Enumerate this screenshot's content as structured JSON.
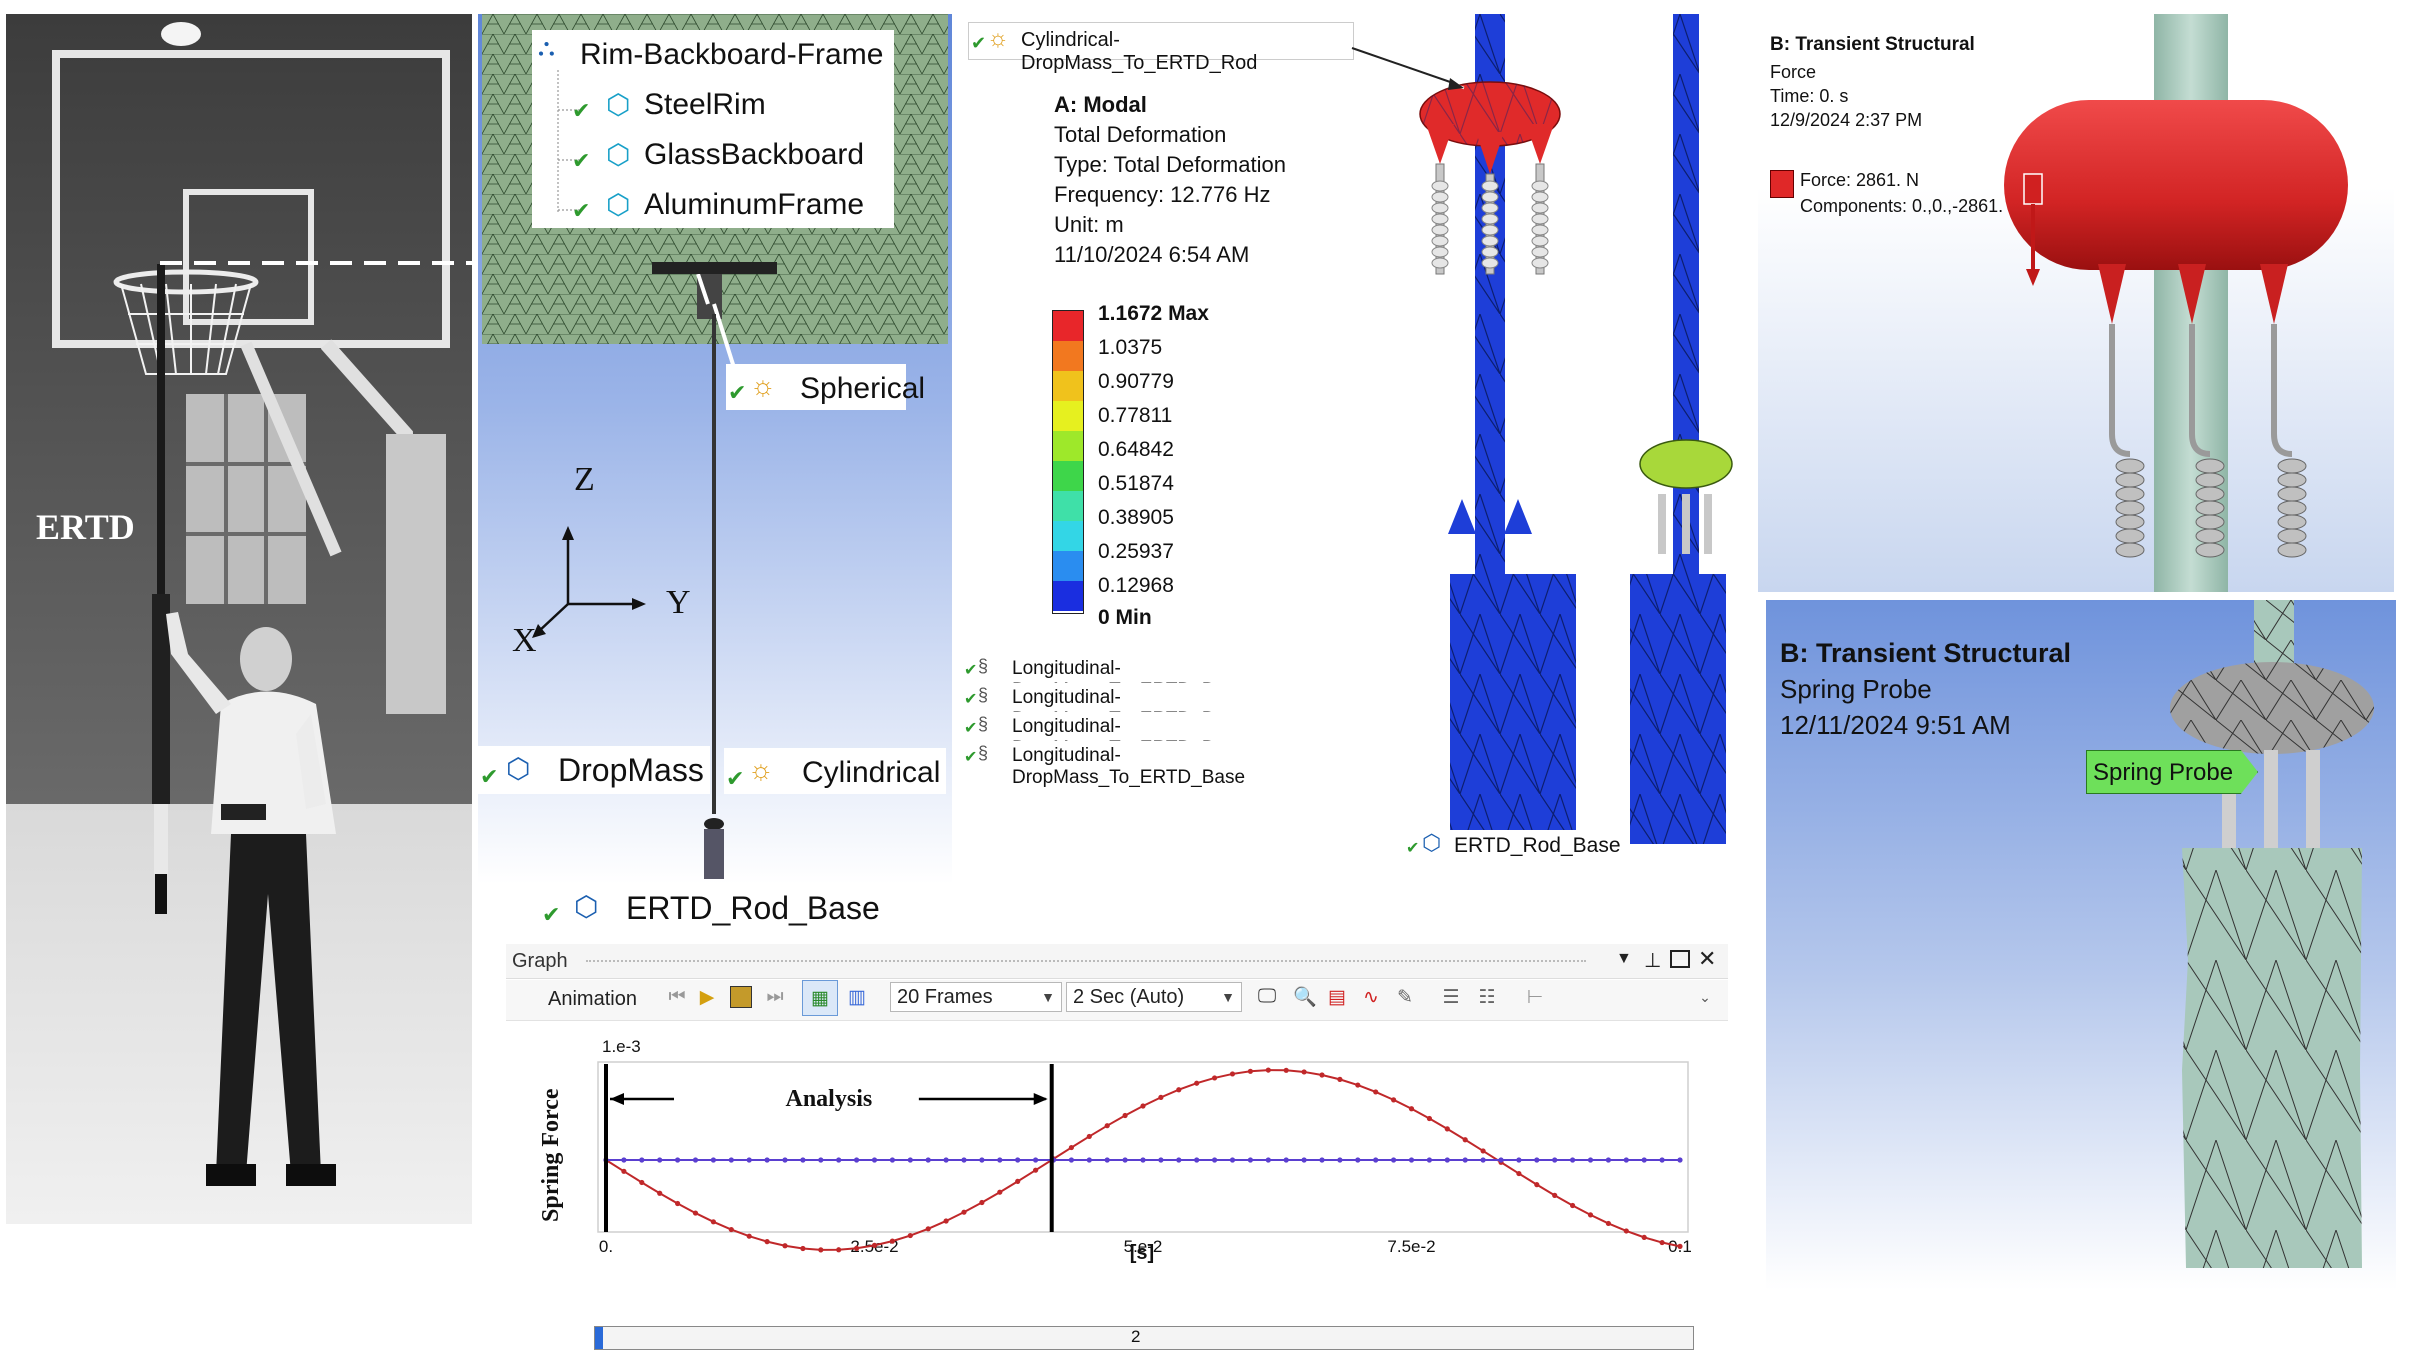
{
  "photo": {
    "label": "ERTD"
  },
  "geometry_panel": {
    "tree_root": "Rim-Backboard-Frame",
    "tree_children": [
      "SteelRim",
      "GlassBackboard",
      "AluminumFrame"
    ],
    "spherical_label": "Spherical",
    "dropmass_label": "DropMass",
    "cylindrical_label": "Cylindrical",
    "rod_base_label": "ERTD_Rod_Base",
    "axes": {
      "z": "Z",
      "y": "Y",
      "x": "X"
    }
  },
  "modal_panel": {
    "joint_label": "Cylindrical-DropMass_To_ERTD_Rod",
    "title": "A: Modal",
    "lines": [
      "Total Deformation",
      "Type: Total Deformation",
      "Frequency: 12.776 Hz",
      "Unit: m",
      "11/10/2024 6:54 AM"
    ],
    "legend": [
      {
        "label": "1.1672 Max",
        "color": "#e8262a"
      },
      {
        "label": "1.0375",
        "color": "#f2781f"
      },
      {
        "label": "0.90779",
        "color": "#f0c21c"
      },
      {
        "label": "0.77811",
        "color": "#e6f01f"
      },
      {
        "label": "0.64842",
        "color": "#9ee82a"
      },
      {
        "label": "0.51874",
        "color": "#3ed64a"
      },
      {
        "label": "0.38905",
        "color": "#3fe0a8"
      },
      {
        "label": "0.25937",
        "color": "#33d6e6"
      },
      {
        "label": "0.12968",
        "color": "#2a8df0"
      },
      {
        "label": "0 Min",
        "color": "#1a2ee0"
      }
    ],
    "springs": [
      "Longitudinal-DropMass_To_ERTD_Base",
      "Longitudinal-DropMass_To_ERTD_Base",
      "Longitudinal-DropMass_To_ERTD_Base",
      "Longitudinal-DropMass_To_ERTD_Base"
    ],
    "base_label": "ERTD_Rod_Base"
  },
  "force_panel": {
    "title": "B: Transient Structural",
    "lines": [
      "Force",
      "Time: 0. s",
      "12/9/2024 2:37 PM"
    ],
    "force_label": "Force: 2861. N",
    "components": "Components: 0.,0.,-2861.",
    "colors": {
      "mass": "#d92b2b",
      "rod": "#a9c9bd"
    }
  },
  "probe_panel": {
    "title": "B: Transient Structural",
    "line1": "Spring Probe",
    "line2": "12/11/2024 9:51 AM",
    "tag": "Spring Probe",
    "colors": {
      "tag": "#6ee05a",
      "base": "#a8c8bb"
    }
  },
  "graph_panel": {
    "title": "Graph",
    "toolbar": {
      "animation_label": "Animation",
      "frames_value": "20 Frames",
      "duration_value": "2 Sec (Auto)"
    },
    "exponent_label": "1.e-3",
    "analysis_label": "Analysis",
    "scrub_value": "2"
  },
  "chart_data": {
    "type": "line",
    "title": "",
    "xlabel": "[s]",
    "ylabel": "Spring Force",
    "xlim": [
      0,
      0.1
    ],
    "x_ticks": [
      "0.",
      "2.5e-2",
      "5.e-2",
      "7.5e-2",
      "0.1"
    ],
    "analysis_end_x": 0.0415,
    "series": [
      {
        "color": "#c0282a",
        "shape": "sine",
        "amplitude": 1.0,
        "period": 0.083,
        "phase_sign": -1,
        "points": 61
      },
      {
        "color": "#5a3fd0",
        "shape": "constant",
        "value": 0,
        "points": 61
      }
    ],
    "grid": false,
    "legend": "none"
  }
}
